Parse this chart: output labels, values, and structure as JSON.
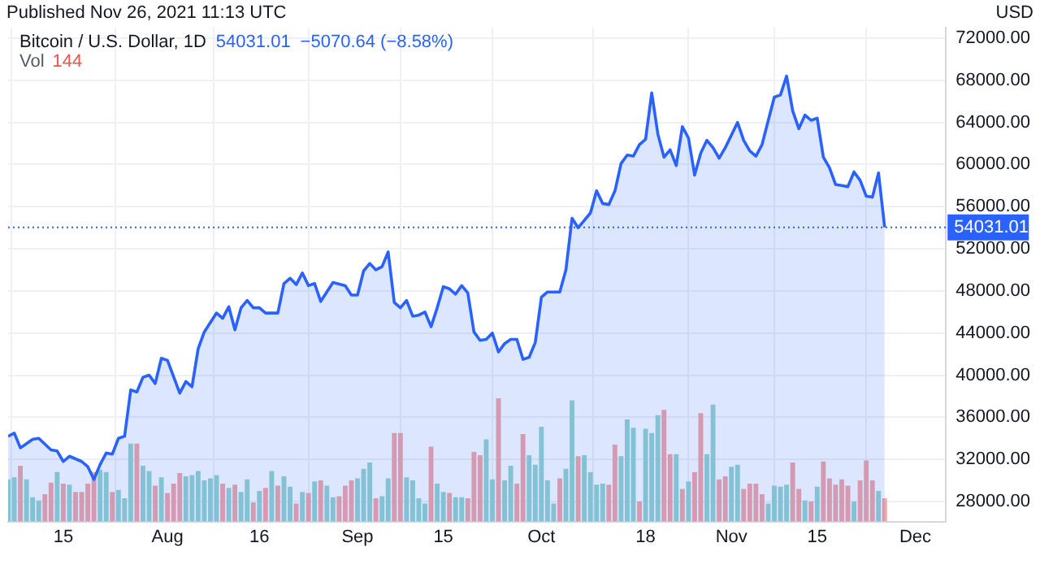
{
  "chart_data": {
    "type": "area",
    "annotations": [
      "Published Nov 26, 2021 11:13 UTC",
      "Bitcoin / U.S. Dollar, 1D",
      "54031.01",
      "−5070.64 (−8.58%)",
      "Vol",
      "144",
      "USD"
    ],
    "x": [
      "2021-07-06",
      "2021-07-07",
      "2021-07-08",
      "2021-07-09",
      "2021-07-10",
      "2021-07-11",
      "2021-07-12",
      "2021-07-13",
      "2021-07-14",
      "2021-07-15",
      "2021-07-16",
      "2021-07-17",
      "2021-07-18",
      "2021-07-19",
      "2021-07-20",
      "2021-07-21",
      "2021-07-22",
      "2021-07-23",
      "2021-07-24",
      "2021-07-25",
      "2021-07-26",
      "2021-07-27",
      "2021-07-28",
      "2021-07-29",
      "2021-07-30",
      "2021-07-31",
      "2021-08-01",
      "2021-08-02",
      "2021-08-03",
      "2021-08-04",
      "2021-08-05",
      "2021-08-06",
      "2021-08-07",
      "2021-08-08",
      "2021-08-09",
      "2021-08-10",
      "2021-08-11",
      "2021-08-12",
      "2021-08-13",
      "2021-08-14",
      "2021-08-15",
      "2021-08-16",
      "2021-08-17",
      "2021-08-18",
      "2021-08-19",
      "2021-08-20",
      "2021-08-21",
      "2021-08-22",
      "2021-08-23",
      "2021-08-24",
      "2021-08-25",
      "2021-08-26",
      "2021-08-27",
      "2021-08-28",
      "2021-08-29",
      "2021-08-30",
      "2021-08-31",
      "2021-09-01",
      "2021-09-02",
      "2021-09-03",
      "2021-09-04",
      "2021-09-05",
      "2021-09-06",
      "2021-09-07",
      "2021-09-08",
      "2021-09-09",
      "2021-09-10",
      "2021-09-11",
      "2021-09-12",
      "2021-09-13",
      "2021-09-14",
      "2021-09-15",
      "2021-09-16",
      "2021-09-17",
      "2021-09-18",
      "2021-09-19",
      "2021-09-20",
      "2021-09-21",
      "2021-09-22",
      "2021-09-23",
      "2021-09-24",
      "2021-09-25",
      "2021-09-26",
      "2021-09-27",
      "2021-09-28",
      "2021-09-29",
      "2021-09-30",
      "2021-10-01",
      "2021-10-02",
      "2021-10-03",
      "2021-10-04",
      "2021-10-05",
      "2021-10-06",
      "2021-10-07",
      "2021-10-08",
      "2021-10-09",
      "2021-10-10",
      "2021-10-11",
      "2021-10-12",
      "2021-10-13",
      "2021-10-14",
      "2021-10-15",
      "2021-10-16",
      "2021-10-17",
      "2021-10-18",
      "2021-10-19",
      "2021-10-20",
      "2021-10-21",
      "2021-10-22",
      "2021-10-23",
      "2021-10-24",
      "2021-10-25",
      "2021-10-26",
      "2021-10-27",
      "2021-10-28",
      "2021-10-29",
      "2021-10-30",
      "2021-10-31",
      "2021-11-01",
      "2021-11-02",
      "2021-11-03",
      "2021-11-04",
      "2021-11-05",
      "2021-11-06",
      "2021-11-07",
      "2021-11-08",
      "2021-11-09",
      "2021-11-10",
      "2021-11-11",
      "2021-11-12",
      "2021-11-13",
      "2021-11-14",
      "2021-11-15",
      "2021-11-16",
      "2021-11-17",
      "2021-11-18",
      "2021-11-19",
      "2021-11-20",
      "2021-11-21",
      "2021-11-22",
      "2021-11-23",
      "2021-11-24",
      "2021-11-25",
      "2021-11-26"
    ],
    "series": [
      {
        "type": "bar",
        "colors": [
          "#94d3cc",
          "#94d3cc",
          "#f5a5a3",
          "#94d3cc",
          "#94d3cc",
          "#94d3cc",
          "#f5a5a3",
          "#f5a5a3",
          "#94d3cc",
          "#f5a5a3",
          "#94d3cc",
          "#f5a5a3",
          "#f5a5a3",
          "#f5a5a3",
          "#f5a5a3",
          "#94d3cc",
          "#94d3cc",
          "#f5a5a3",
          "#94d3cc",
          "#94d3cc",
          "#94d3cc",
          "#f5a5a3",
          "#94d3cc",
          "#94d3cc",
          "#f5a5a3",
          "#94d3cc",
          "#f5a5a3",
          "#f5a5a3",
          "#f5a5a3",
          "#94d3cc",
          "#94d3cc",
          "#94d3cc",
          "#94d3cc",
          "#94d3cc",
          "#94d3cc",
          "#f5a5a3",
          "#94d3cc",
          "#f5a5a3",
          "#94d3cc",
          "#94d3cc",
          "#f5a5a3",
          "#94d3cc",
          "#f5a5a3",
          "#94d3cc",
          "#f5a5a3",
          "#94d3cc",
          "#94d3cc",
          "#f5a5a3",
          "#94d3cc",
          "#f5a5a3",
          "#94d3cc",
          "#f5a5a3",
          "#94d3cc",
          "#94d3cc",
          "#f5a5a3",
          "#f5a5a3",
          "#f5a5a3",
          "#94d3cc",
          "#94d3cc",
          "#94d3cc",
          "#f5a5a3",
          "#94d3cc",
          "#94d3cc",
          "#f5a5a3",
          "#f5a5a3",
          "#94d3cc",
          "#94d3cc",
          "#94d3cc",
          "#94d3cc",
          "#f5a5a3",
          "#94d3cc",
          "#94d3cc",
          "#f5a5a3",
          "#94d3cc",
          "#94d3cc",
          "#f5a5a3",
          "#f5a5a3",
          "#f5a5a3",
          "#94d3cc",
          "#94d3cc",
          "#f5a5a3",
          "#94d3cc",
          "#94d3cc",
          "#f5a5a3",
          "#f5a5a3",
          "#94d3cc",
          "#94d3cc",
          "#94d3cc",
          "#94d3cc",
          "#94d3cc",
          "#f5a5a3",
          "#94d3cc",
          "#94d3cc",
          "#f5a5a3",
          "#94d3cc",
          "#94d3cc",
          "#94d3cc",
          "#94d3cc",
          "#f5a5a3",
          "#f5a5a3",
          "#94d3cc",
          "#94d3cc",
          "#94d3cc",
          "#f5a5a3",
          "#94d3cc",
          "#94d3cc",
          "#94d3cc",
          "#f5a5a3",
          "#f5a5a3",
          "#94d3cc",
          "#f5a5a3",
          "#94d3cc",
          "#f5a5a3",
          "#f5a5a3",
          "#94d3cc",
          "#94d3cc",
          "#f5a5a3",
          "#f5a5a3",
          "#94d3cc",
          "#94d3cc",
          "#f5a5a3",
          "#f5a5a3",
          "#f5a5a3",
          "#f5a5a3",
          "#94d3cc",
          "#94d3cc",
          "#94d3cc",
          "#94d3cc",
          "#f5a5a3",
          "#f5a5a3",
          "#94d3cc",
          "#f5a5a3",
          "#94d3cc",
          "#f5a5a3",
          "#f5a5a3",
          "#f5a5a3",
          "#f5a5a3",
          "#f5a5a3",
          "#94d3cc",
          "#f5a5a3",
          "#f5a5a3",
          "#f5a5a3",
          "#94d3cc",
          "#f5a5a3"
        ],
        "values": [
          30100,
          30300,
          31400,
          30100,
          28400,
          28100,
          28700,
          29800,
          30800,
          29700,
          29600,
          28900,
          28900,
          29700,
          30800,
          31000,
          30800,
          28900,
          29100,
          28300,
          33500,
          33500,
          31400,
          30900,
          29500,
          30300,
          28800,
          29700,
          30700,
          30400,
          30500,
          30900,
          30000,
          30200,
          30500,
          29700,
          29300,
          29600,
          28900,
          30100,
          27900,
          29000,
          29300,
          30900,
          29500,
          30400,
          29400,
          27800,
          28900,
          28800,
          29900,
          30000,
          29500,
          28400,
          28500,
          29500,
          30000,
          30200,
          31100,
          31700,
          28300,
          28500,
          30200,
          34500,
          34500,
          30300,
          30000,
          28300,
          27800,
          33200,
          29700,
          28900,
          28800,
          28400,
          28400,
          28300,
          32700,
          32400,
          33900,
          30100,
          37800,
          30000,
          31400,
          29700,
          34400,
          32400,
          31500,
          35100,
          30000,
          27800,
          30200,
          31100,
          37600,
          32300,
          32400,
          30800,
          29600,
          29700,
          29600,
          33400,
          32300,
          35800,
          35000,
          28000,
          34900,
          34500,
          36200,
          36700,
          32500,
          32500,
          29200,
          29900,
          30800,
          36400,
          32500,
          37200,
          30100,
          30400,
          31300,
          31500,
          29200,
          29700,
          29700,
          28700,
          27800,
          29500,
          29400,
          29600,
          31700,
          29200,
          28100,
          28000,
          29400,
          31800,
          30200,
          29600,
          30100,
          29500,
          28000,
          30000,
          31900,
          30000,
          29000,
          28300
        ]
      },
      {
        "color": "#2962ff",
        "x": [
          "2021-07-06",
          "2021-07-07",
          "2021-07-08",
          "2021-07-10",
          "2021-07-11",
          "2021-07-13",
          "2021-07-14",
          "2021-07-15",
          "2021-07-16",
          "2021-07-18",
          "2021-07-19",
          "2021-07-20",
          "2021-07-21",
          "2021-07-22",
          "2021-07-23",
          "2021-07-24",
          "2021-07-25",
          "2021-07-26",
          "2021-07-27",
          "2021-07-28",
          "2021-07-29",
          "2021-07-30",
          "2021-07-31",
          "2021-08-01",
          "2021-08-03",
          "2021-08-04",
          "2021-08-05",
          "2021-08-06",
          "2021-08-07",
          "2021-08-09",
          "2021-08-10",
          "2021-08-11",
          "2021-08-12",
          "2021-08-13",
          "2021-08-14",
          "2021-08-15",
          "2021-08-16",
          "2021-08-17",
          "2021-08-19",
          "2021-08-20",
          "2021-08-21",
          "2021-08-22",
          "2021-08-23",
          "2021-08-24",
          "2021-08-25",
          "2021-08-26",
          "2021-08-28",
          "2021-08-30",
          "2021-08-31",
          "2021-09-01",
          "2021-09-02",
          "2021-09-03",
          "2021-09-04",
          "2021-09-05",
          "2021-09-06",
          "2021-09-07",
          "2021-09-08",
          "2021-09-09",
          "2021-09-10",
          "2021-09-11",
          "2021-09-12",
          "2021-09-13",
          "2021-09-14",
          "2021-09-15",
          "2021-09-16",
          "2021-09-17",
          "2021-09-18",
          "2021-09-19",
          "2021-09-20",
          "2021-09-21",
          "2021-09-22",
          "2021-09-23",
          "2021-09-24",
          "2021-09-25",
          "2021-09-26",
          "2021-09-27",
          "2021-09-28",
          "2021-09-29",
          "2021-09-30",
          "2021-10-01",
          "2021-10-02",
          "2021-10-04",
          "2021-10-05",
          "2021-10-06",
          "2021-10-07",
          "2021-10-08",
          "2021-10-09",
          "2021-10-10",
          "2021-10-11",
          "2021-10-12",
          "2021-10-13",
          "2021-10-14",
          "2021-10-15",
          "2021-10-16",
          "2021-10-17",
          "2021-10-18",
          "2021-10-19",
          "2021-10-20",
          "2021-10-21",
          "2021-10-22",
          "2021-10-23",
          "2021-10-24",
          "2021-10-25",
          "2021-10-26",
          "2021-10-27",
          "2021-10-28",
          "2021-10-29",
          "2021-10-30",
          "2021-10-31",
          "2021-11-02",
          "2021-11-03",
          "2021-11-04",
          "2021-11-05",
          "2021-11-06",
          "2021-11-08",
          "2021-11-09",
          "2021-11-10",
          "2021-11-11",
          "2021-11-12",
          "2021-11-13",
          "2021-11-14",
          "2021-11-15",
          "2021-11-16",
          "2021-11-17",
          "2021-11-18",
          "2021-11-19",
          "2021-11-20",
          "2021-11-21",
          "2021-11-22",
          "2021-11-23",
          "2021-11-24",
          "2021-11-25",
          "2021-11-26"
        ],
        "values": [
          34200,
          34500,
          33100,
          33900,
          34000,
          32900,
          32800,
          31800,
          32300,
          31800,
          31300,
          30100,
          31500,
          32600,
          32500,
          34000,
          34200,
          38600,
          38400,
          39800,
          40000,
          39200,
          41600,
          41400,
          38300,
          39400,
          38900,
          42500,
          44100,
          45900,
          45400,
          46500,
          44300,
          46400,
          47100,
          46400,
          46400,
          45900,
          45900,
          48700,
          49200,
          48600,
          49700,
          48500,
          48700,
          47000,
          48800,
          48500,
          47600,
          47600,
          49900,
          50600,
          50000,
          50300,
          51700,
          46900,
          46400,
          47100,
          45600,
          45700,
          46000,
          44600,
          46400,
          48400,
          48200,
          47700,
          48500,
          47800,
          44100,
          43300,
          43400,
          44000,
          42200,
          43000,
          43400,
          43400,
          41500,
          41700,
          43100,
          47400,
          47900,
          47900,
          50000,
          54900,
          54000,
          54700,
          55400,
          57500,
          56300,
          56200,
          57500,
          60100,
          60900,
          60800,
          61900,
          62400,
          66800,
          62900,
          60700,
          61400,
          59900,
          63600,
          62500,
          59000,
          61100,
          62300,
          61600,
          60600,
          61600,
          64000,
          62300,
          61300,
          60800,
          61900,
          66400,
          66600,
          68400,
          65100,
          63400,
          64700,
          64200,
          64400,
          60700,
          59700,
          58100,
          58000,
          57900,
          59300,
          58500,
          57000,
          56900,
          59200,
          54031.01
        ]
      }
    ],
    "xlim": [
      "2021-07-06",
      "2021-12-06"
    ],
    "xticks": [
      {
        "value": "2021-07-15",
        "label": "15"
      },
      {
        "value": "2021-08-01",
        "label": "Aug"
      },
      {
        "value": "2021-08-16",
        "label": "16"
      },
      {
        "value": "2021-09-01",
        "label": "Sep"
      },
      {
        "value": "2021-09-15",
        "label": "15"
      },
      {
        "value": "2021-10-01",
        "label": "Oct"
      },
      {
        "value": "2021-10-18",
        "label": "18"
      },
      {
        "value": "2021-11-01",
        "label": "Nov"
      },
      {
        "value": "2021-11-15",
        "label": "15"
      },
      {
        "value": "2021-12-01",
        "label": "Dec"
      }
    ],
    "ylim": [
      26100,
      73000
    ],
    "yticks": [
      {
        "value": 28000,
        "label": "28000.00"
      },
      {
        "value": 32000,
        "label": "32000.00"
      },
      {
        "value": 36000,
        "label": "36000.00"
      },
      {
        "value": 40000,
        "label": "40000.00"
      },
      {
        "value": 44000,
        "label": "44000.00"
      },
      {
        "value": 48000,
        "label": "48000.00"
      },
      {
        "value": 52000,
        "label": "52000.00"
      },
      {
        "value": 56000,
        "label": "56000.00"
      },
      {
        "value": 60000,
        "label": "60000.00"
      },
      {
        "value": 64000,
        "label": "64000.00"
      },
      {
        "value": 68000,
        "label": "68000.00"
      },
      {
        "value": 72000,
        "label": "72000.00"
      }
    ],
    "ref_lines": [
      {
        "axis": "y",
        "value": 54031.01,
        "label": "54031.01",
        "color": "#2962ff",
        "line_style": "dotted"
      }
    ],
    "grid": true,
    "marker": "none"
  }
}
